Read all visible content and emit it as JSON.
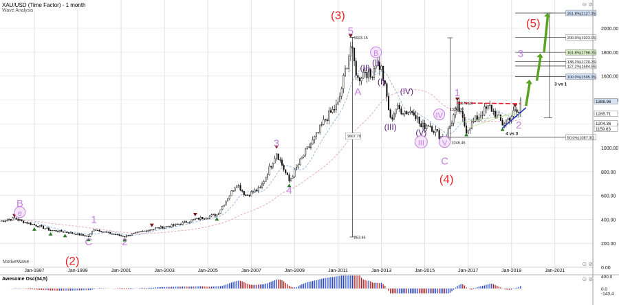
{
  "header": {
    "title": "XAU/USD (Time Factor) - 1 month",
    "subtitle": "Wave Analysis"
  },
  "brand": "MotiveWave",
  "oscillator": {
    "label": "Awesome Osc(34,5)",
    "ticks": [
      "400.0",
      "0.0",
      "-143.4"
    ]
  },
  "colors": {
    "up_candle": "#333333",
    "down_candle": "#111111",
    "wave_red": "#e8252a",
    "wave_purple": "#c77fe0",
    "wave_dark": "#5a1b75",
    "target_green": "#5aa322",
    "support_blue": "#2233bb",
    "ma_blue": "#8fb0e0",
    "ma_pink": "#e4a6b4",
    "osc_red": "#b42020",
    "osc_blue": "#2244cc"
  },
  "chart_data": {
    "type": "candlestick",
    "instrument": "XAU/USD",
    "timeframe": "1 month",
    "x_axis": {
      "ticks": [
        "Jan-1997",
        "Jan-1999",
        "Jan-2001",
        "Jan-2003",
        "Jan-2005",
        "Jan-2007",
        "Jan-2009",
        "Jan-2011",
        "Jan-2013",
        "Jan-2015",
        "Jan-2017",
        "Jan-2019",
        "Jan-2021"
      ],
      "range": [
        "1995-06",
        "2022-10"
      ]
    },
    "y_axis": {
      "ticks": [
        "0.00",
        "200.00",
        "400.00",
        "600.00",
        "800.00",
        "1000.00",
        "1200.00",
        "1400.00",
        "1600.00",
        "1800.00",
        "2000.00"
      ],
      "range": [
        0,
        2150
      ]
    },
    "price_path": [
      {
        "t": "1995-06",
        "v": 385
      },
      {
        "t": "1996-02",
        "v": 410
      },
      {
        "t": "1996-06",
        "v": 385
      },
      {
        "t": "1997-01",
        "v": 355
      },
      {
        "t": "1997-10",
        "v": 310
      },
      {
        "t": "1998-06",
        "v": 295
      },
      {
        "t": "1999-07",
        "v": 258
      },
      {
        "t": "1999-10",
        "v": 320
      },
      {
        "t": "2000-06",
        "v": 285
      },
      {
        "t": "2001-03",
        "v": 258
      },
      {
        "t": "2002-06",
        "v": 320
      },
      {
        "t": "2003-06",
        "v": 350
      },
      {
        "t": "2004-06",
        "v": 400
      },
      {
        "t": "2005-06",
        "v": 440
      },
      {
        "t": "2006-05",
        "v": 700
      },
      {
        "t": "2006-10",
        "v": 600
      },
      {
        "t": "2007-06",
        "v": 660
      },
      {
        "t": "2008-03",
        "v": 960
      },
      {
        "t": "2008-10",
        "v": 720
      },
      {
        "t": "2009-06",
        "v": 940
      },
      {
        "t": "2010-01",
        "v": 1100
      },
      {
        "t": "2010-06",
        "v": 1240
      },
      {
        "t": "2011-01",
        "v": 1360
      },
      {
        "t": "2011-08",
        "v": 1850
      },
      {
        "t": "2011-12",
        "v": 1570
      },
      {
        "t": "2012-04",
        "v": 1650
      },
      {
        "t": "2012-07",
        "v": 1590
      },
      {
        "t": "2012-10",
        "v": 1720
      },
      {
        "t": "2013-01",
        "v": 1660
      },
      {
        "t": "2013-04",
        "v": 1420
      },
      {
        "t": "2013-06",
        "v": 1230
      },
      {
        "t": "2013-09",
        "v": 1330
      },
      {
        "t": "2014-03",
        "v": 1300
      },
      {
        "t": "2014-07",
        "v": 1310
      },
      {
        "t": "2014-11",
        "v": 1170
      },
      {
        "t": "2015-03",
        "v": 1200
      },
      {
        "t": "2015-12",
        "v": 1060
      },
      {
        "t": "2016-07",
        "v": 1350
      },
      {
        "t": "2016-12",
        "v": 1150
      },
      {
        "t": "2017-09",
        "v": 1300
      },
      {
        "t": "2018-01",
        "v": 1340
      },
      {
        "t": "2018-08",
        "v": 1200
      },
      {
        "t": "2019-03",
        "v": 1300
      },
      {
        "t": "2019-05",
        "v": 1290
      },
      {
        "t": "2019-06",
        "v": 1390
      }
    ],
    "wave_labels": [
      {
        "text": "(3)",
        "t": "2011-01",
        "v": 2075,
        "color": "red"
      },
      {
        "text": "(4)",
        "t": "2016-01",
        "v": 705,
        "color": "red"
      },
      {
        "text": "(5)",
        "t": "2020-01",
        "v": 2010,
        "color": "red"
      },
      {
        "text": "(2)",
        "t": "1998-10",
        "v": 20,
        "color": "red"
      },
      {
        "text": "B",
        "t": "1996-05",
        "v": 505,
        "color": "purple"
      },
      {
        "text": "e",
        "t": "1996-05",
        "v": 432,
        "color": "purple"
      },
      {
        "text": "1",
        "t": "1999-10",
        "v": 370,
        "color": "purple"
      },
      {
        "text": "C",
        "t": "1999-07",
        "v": 185,
        "color": "purple"
      },
      {
        "text": "2",
        "t": "2001-03",
        "v": 185,
        "color": "purple"
      },
      {
        "text": "3",
        "t": "2008-03",
        "v": 1010,
        "color": "purple"
      },
      {
        "text": "4",
        "t": "2008-10",
        "v": 615,
        "color": "purple"
      },
      {
        "text": "5",
        "t": "2011-08",
        "v": 1950,
        "color": "purple"
      },
      {
        "text": "A",
        "t": "2011-12",
        "v": 1440,
        "color": "purple"
      },
      {
        "text": "B",
        "t": "2012-10",
        "v": 1770,
        "color": "purple"
      },
      {
        "text": "1",
        "t": "2016-07",
        "v": 1430,
        "color": "purple"
      },
      {
        "text": "2",
        "t": "2019-05",
        "v": 1160,
        "color": "purple"
      },
      {
        "text": "3",
        "t": "2019-06",
        "v": 1760,
        "color": "purple"
      },
      {
        "text": "IV",
        "t": "2015-09",
        "v": 1250,
        "color": "purple"
      },
      {
        "text": "V",
        "t": "2015-12",
        "v": 1020,
        "color": "purple"
      },
      {
        "text": "C",
        "t": "2015-12",
        "v": 860,
        "color": "purple"
      },
      {
        "text": "III",
        "t": "2014-11",
        "v": 1020,
        "color": "purple"
      },
      {
        "text": "(I)",
        "t": "2012-10",
        "v": 1690,
        "color": "dark"
      },
      {
        "text": "(II)",
        "t": "2012-04",
        "v": 1645,
        "color": "dark"
      },
      {
        "text": "(I)",
        "t": "2013-01",
        "v": 1530,
        "color": "dark"
      },
      {
        "text": "(III)",
        "t": "2013-06",
        "v": 1150,
        "color": "dark"
      },
      {
        "text": "(IV)",
        "t": "2014-03",
        "v": 1450,
        "color": "dark"
      },
      {
        "text": "(V)",
        "t": "2014-11",
        "v": 1105,
        "color": "dark"
      }
    ],
    "fib_levels": [
      {
        "label": "261.8%(2127.15)",
        "v": 2127.15
      },
      {
        "label": "200.0%(1923.95)",
        "v": 1923.95
      },
      {
        "label": "161.8%(1798.35)",
        "v": 1798.35
      },
      {
        "label": "138.2%(1720.75)",
        "v": 1720.75
      },
      {
        "label": "127.2%(1684.56)",
        "v": 1684.56
      },
      {
        "label": "100.0%(1595.15)",
        "v": 1595.15
      },
      {
        "label": "50.0%(1087.30)",
        "v": 1087.3
      }
    ],
    "price_labels": [
      {
        "label": "1388.96",
        "v": 1388.96
      },
      {
        "label": "1285.71",
        "v": 1285.71
      },
      {
        "label": "1204.36",
        "v": 1204.36
      },
      {
        "label": "1159.63",
        "v": 1159.63
      }
    ],
    "annotations": [
      {
        "text": "1923.15",
        "t": "2011-09",
        "v": 1923
      },
      {
        "text": "1667.70",
        "t": "2011-09",
        "v": 1100
      },
      {
        "text": "253.46",
        "t": "2011-09",
        "v": 253
      },
      {
        "text": "1375.28",
        "t": "2016-07",
        "v": 1375
      },
      {
        "text": "1326.90",
        "t": "2016-02",
        "v": 1326
      },
      {
        "text": "1046.46",
        "t": "2016-03",
        "v": 1046
      },
      {
        "text": "3 vs 1",
        "t": "2020-12",
        "v": 1535
      },
      {
        "text": "4 vs 3",
        "t": "2018-09",
        "v": 1120
      }
    ]
  }
}
